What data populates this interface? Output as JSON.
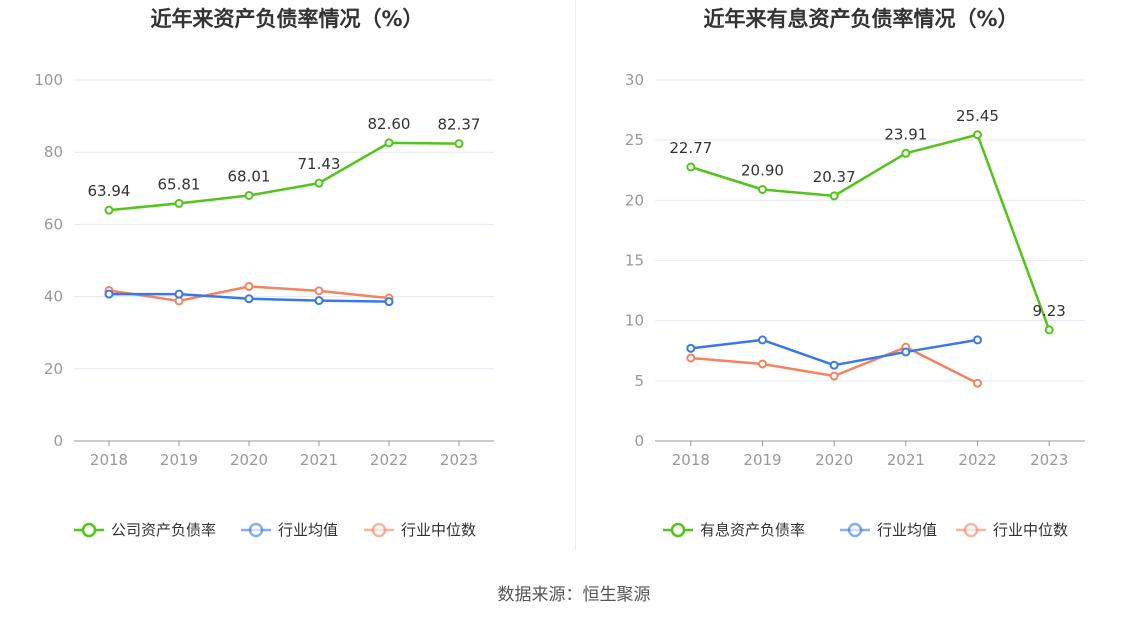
{
  "chart_data": [
    {
      "type": "line",
      "title": "近年来资产负债率情况（%）",
      "categories": [
        "2018",
        "2019",
        "2020",
        "2021",
        "2022",
        "2023"
      ],
      "ylim": [
        0,
        100
      ],
      "yticks": [
        0,
        20,
        40,
        60,
        80,
        100
      ],
      "grid": true,
      "legend_position": "bottom",
      "series": [
        {
          "name": "公司资产负债率",
          "color": "#52c41a",
          "labeled": true,
          "values": [
            63.94,
            65.81,
            68.01,
            71.43,
            82.6,
            82.37
          ],
          "labels": [
            "63.94",
            "65.81",
            "68.01",
            "71.43",
            "82.60",
            "82.37"
          ]
        },
        {
          "name": "行业均值",
          "color": "#3b78e7",
          "labeled": false,
          "values": [
            40.7,
            40.7,
            39.4,
            38.9,
            38.6,
            null
          ]
        },
        {
          "name": "行业中位数",
          "color": "#f4845f",
          "labeled": false,
          "values": [
            41.7,
            38.8,
            42.8,
            41.6,
            39.6,
            null
          ]
        }
      ]
    },
    {
      "type": "line",
      "title": "近年来有息资产负债率情况（%）",
      "categories": [
        "2018",
        "2019",
        "2020",
        "2021",
        "2022",
        "2023"
      ],
      "ylim": [
        0,
        30
      ],
      "yticks": [
        0,
        5,
        10,
        15,
        20,
        25,
        30
      ],
      "grid": true,
      "legend_position": "bottom",
      "series": [
        {
          "name": "有息资产负债率",
          "color": "#52c41a",
          "labeled": true,
          "values": [
            22.77,
            20.9,
            20.37,
            23.91,
            25.45,
            9.23
          ],
          "labels": [
            "22.77",
            "20.90",
            "20.37",
            "23.91",
            "25.45",
            "9.23"
          ]
        },
        {
          "name": "行业均值",
          "color": "#3b78e7",
          "labeled": false,
          "values": [
            7.7,
            8.4,
            6.3,
            7.4,
            8.4,
            null
          ]
        },
        {
          "name": "行业中位数",
          "color": "#f4845f",
          "labeled": false,
          "values": [
            6.9,
            6.4,
            5.4,
            7.8,
            4.8,
            null
          ]
        }
      ]
    }
  ],
  "source_text": "数据来源：恒生聚源"
}
